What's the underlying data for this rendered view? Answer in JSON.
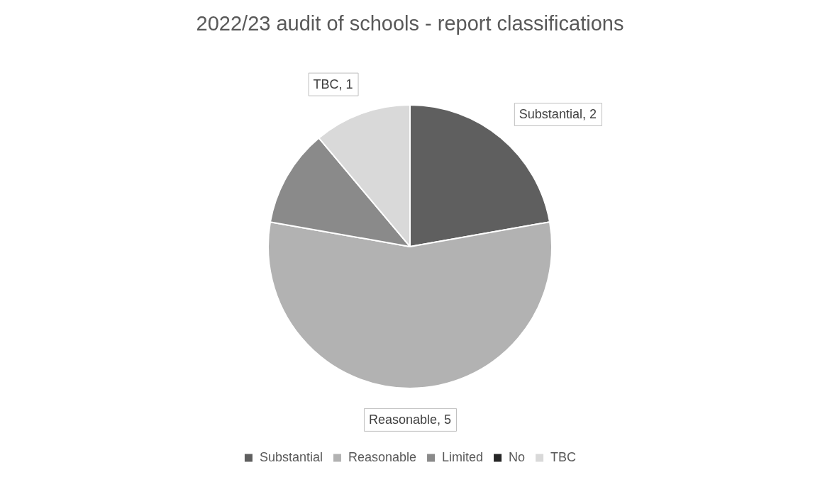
{
  "chart_data": {
    "type": "pie",
    "title": "2022/23 audit of schools - report classifications",
    "categories": [
      "Substantial",
      "Reasonable",
      "Limited",
      "No",
      "TBC"
    ],
    "values": [
      2,
      5,
      1,
      0,
      1
    ],
    "colors": [
      "#5f5f5f",
      "#b2b2b2",
      "#8a8a8a",
      "#262626",
      "#d9d9d9"
    ],
    "value_labels": [
      "Substantial, 2",
      "Reasonable, 5",
      null,
      null,
      "TBC, 1"
    ],
    "legend": "bottom"
  }
}
